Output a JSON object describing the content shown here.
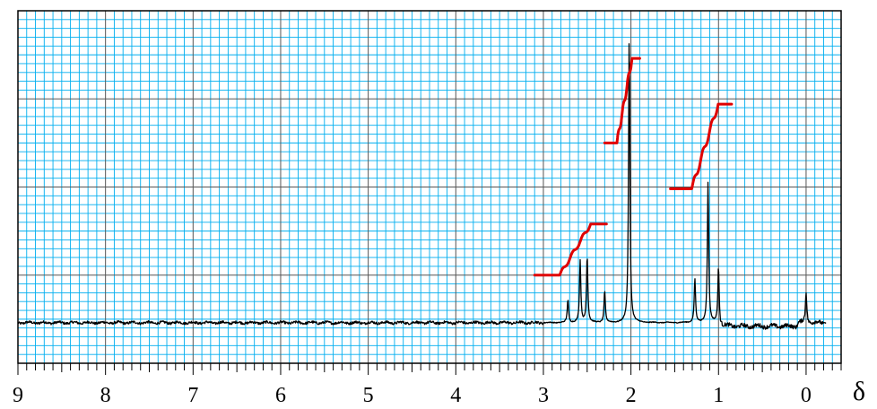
{
  "chart_data": {
    "type": "line",
    "title": "",
    "xlabel": "δ",
    "ylabel": "",
    "x_reversed": true,
    "xlim": [
      9,
      -0.4
    ],
    "ylim": [
      0,
      100
    ],
    "tick_labels": [
      "9",
      "8",
      "7",
      "6",
      "5",
      "4",
      "3",
      "2",
      "1",
      "0"
    ],
    "tick_values": [
      9,
      8,
      7,
      6,
      5,
      4,
      3,
      2,
      1,
      0
    ],
    "grid": true,
    "colors": {
      "grid_minor": "#00aeef",
      "grid_major": "#555555",
      "spectrum": "#000000",
      "integral": "#e00000"
    },
    "baseline": 11.5,
    "noise_regions": [
      [
        9.0,
        3.0,
        0.35
      ],
      [
        1.0,
        -0.2,
        0.55
      ]
    ],
    "peaks": [
      {
        "x": 2.72,
        "height": 6.5
      },
      {
        "x": 2.58,
        "height": 17.5
      },
      {
        "x": 2.5,
        "height": 19.0
      },
      {
        "x": 2.3,
        "height": 9.0
      },
      {
        "x": 2.02,
        "height": 82.0
      },
      {
        "x": 1.27,
        "height": 12.5
      },
      {
        "x": 1.12,
        "height": 40.0
      },
      {
        "x": 1.0,
        "height": 16.5
      },
      {
        "x": 0.0,
        "height": 9.0
      }
    ],
    "integrals": [
      {
        "x_start": 3.1,
        "x_end": 2.28,
        "y_start": 25.0,
        "y_end": 39.5
      },
      {
        "x_start": 2.3,
        "x_end": 1.9,
        "y_start": 62.5,
        "y_end": 86.5
      },
      {
        "x_start": 1.55,
        "x_end": 0.85,
        "y_start": 49.5,
        "y_end": 73.5
      }
    ]
  }
}
